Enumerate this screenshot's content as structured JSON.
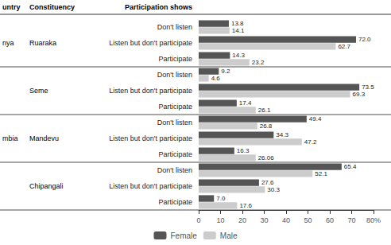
{
  "chart_data": {
    "type": "bar",
    "orientation": "horizontal",
    "data_labels": true,
    "grid": false,
    "legend": "bottom",
    "headers": {
      "country": "untry",
      "constituency": "Constituency",
      "categories": "Participation shows"
    },
    "groups": [
      {
        "constituency": "Ruaraka",
        "country": "nya",
        "categories": [
          "Don't listen",
          "Listen but don't participate",
          "Participate"
        ]
      },
      {
        "constituency": "Seme",
        "categories": [
          "Don't listen",
          "Listen but don't participate",
          "Participate"
        ]
      },
      {
        "constituency": "Mandevu",
        "country": "mbia",
        "categories": [
          "Don't listen",
          "Listen but don't participate",
          "Participate"
        ]
      },
      {
        "constituency": "Chipangali",
        "categories": [
          "Don't listen",
          "Listen but don't participate",
          "Participate"
        ]
      }
    ],
    "series": [
      {
        "name": "Female",
        "color": "#555555",
        "values": [
          13.8,
          72.0,
          14.3,
          9.2,
          73.5,
          17.4,
          49.4,
          34.3,
          16.3,
          65.4,
          27.6,
          7.0
        ],
        "value_labels": [
          "13.8",
          "72.0",
          "14.3",
          "9.2",
          "73.5",
          "17.4",
          "49.4",
          "34.3",
          "16.3",
          "65.4",
          "27.6",
          "7.0"
        ]
      },
      {
        "name": "Male",
        "color": "#cccccc",
        "values": [
          14.1,
          62.7,
          23.2,
          4.6,
          69.3,
          26.1,
          26.8,
          47.2,
          26.06,
          52.1,
          30.3,
          17.6
        ],
        "value_labels": [
          "14.1",
          "62.7",
          "23.2",
          "4.6",
          "69.3",
          "26.1",
          "26.8",
          "47.2",
          "26.06",
          "52.1",
          "30.3",
          "17.6"
        ]
      }
    ],
    "xlim": [
      0,
      80
    ],
    "xticks": [
      0,
      10,
      20,
      30,
      40,
      50,
      60,
      70,
      {
        "value": 80,
        "label": "80%"
      }
    ]
  }
}
